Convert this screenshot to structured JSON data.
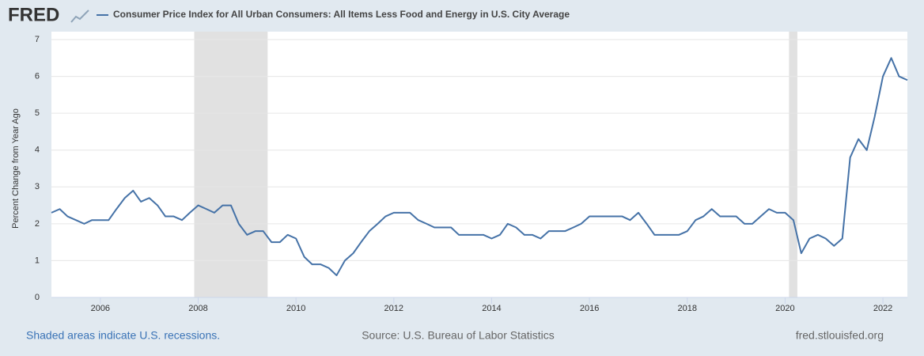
{
  "chart_data": {
    "type": "line",
    "logo": "FRED",
    "y_label": "Percent Change from Year Ago",
    "footer_left": "Shaded areas indicate U.S. recessions.",
    "footer_center": "Source: U.S. Bureau of Labor Statistics",
    "footer_right": "fred.stlouisfed.org",
    "x": [
      2005,
      2005.17,
      2005.33,
      2005.5,
      2005.67,
      2005.83,
      2006,
      2006.17,
      2006.33,
      2006.5,
      2006.67,
      2006.83,
      2007,
      2007.17,
      2007.33,
      2007.5,
      2007.67,
      2007.83,
      2008,
      2008.17,
      2008.33,
      2008.5,
      2008.67,
      2008.83,
      2009,
      2009.17,
      2009.33,
      2009.5,
      2009.67,
      2009.83,
      2010,
      2010.17,
      2010.33,
      2010.5,
      2010.67,
      2010.83,
      2011,
      2011.17,
      2011.33,
      2011.5,
      2011.67,
      2011.83,
      2012,
      2012.17,
      2012.33,
      2012.5,
      2012.67,
      2012.83,
      2013,
      2013.17,
      2013.33,
      2013.5,
      2013.67,
      2013.83,
      2014,
      2014.17,
      2014.33,
      2014.5,
      2014.67,
      2014.83,
      2015,
      2015.17,
      2015.33,
      2015.5,
      2015.67,
      2015.83,
      2016,
      2016.17,
      2016.33,
      2016.5,
      2016.67,
      2016.83,
      2017,
      2017.17,
      2017.33,
      2017.5,
      2017.67,
      2017.83,
      2018,
      2018.17,
      2018.33,
      2018.5,
      2018.67,
      2018.83,
      2019,
      2019.17,
      2019.33,
      2019.5,
      2019.67,
      2019.83,
      2020,
      2020.17,
      2020.33,
      2020.5,
      2020.67,
      2020.83,
      2021,
      2021.17,
      2021.33,
      2021.5,
      2021.67,
      2021.83,
      2022,
      2022.17,
      2022.33,
      2022.5
    ],
    "series": [
      {
        "name": "Consumer Price Index for All Urban Consumers: All Items Less Food and Energy in U.S. City Average",
        "color": "#4572a7",
        "values": [
          2.3,
          2.4,
          2.2,
          2.1,
          2.0,
          2.1,
          2.1,
          2.1,
          2.4,
          2.7,
          2.9,
          2.6,
          2.7,
          2.5,
          2.2,
          2.2,
          2.1,
          2.3,
          2.5,
          2.4,
          2.3,
          2.5,
          2.5,
          2.0,
          1.7,
          1.8,
          1.8,
          1.5,
          1.5,
          1.7,
          1.6,
          1.1,
          0.9,
          0.9,
          0.8,
          0.6,
          1.0,
          1.2,
          1.5,
          1.8,
          2.0,
          2.2,
          2.3,
          2.3,
          2.3,
          2.1,
          2.0,
          1.9,
          1.9,
          1.9,
          1.7,
          1.7,
          1.7,
          1.7,
          1.6,
          1.7,
          2.0,
          1.9,
          1.7,
          1.7,
          1.6,
          1.8,
          1.8,
          1.8,
          1.9,
          2.0,
          2.2,
          2.2,
          2.2,
          2.2,
          2.2,
          2.1,
          2.3,
          2.0,
          1.7,
          1.7,
          1.7,
          1.7,
          1.8,
          2.1,
          2.2,
          2.4,
          2.2,
          2.2,
          2.2,
          2.0,
          2.0,
          2.2,
          2.4,
          2.3,
          2.3,
          2.1,
          1.2,
          1.6,
          1.7,
          1.6,
          1.4,
          1.6,
          3.8,
          4.3,
          4.0,
          4.9,
          6.0,
          6.5,
          6.0,
          5.9
        ]
      }
    ],
    "recessions": [
      [
        2007.92,
        2009.42
      ],
      [
        2020.08,
        2020.25
      ]
    ],
    "recession_color": "#e1e1e1",
    "xlim": [
      2005,
      2022.5
    ],
    "xticks": [
      2006,
      2008,
      2010,
      2012,
      2014,
      2016,
      2018,
      2020,
      2022
    ],
    "ylim": [
      0,
      7
    ],
    "yticks": [
      0,
      1,
      2,
      3,
      4,
      5,
      6,
      7
    ],
    "grid": true
  }
}
